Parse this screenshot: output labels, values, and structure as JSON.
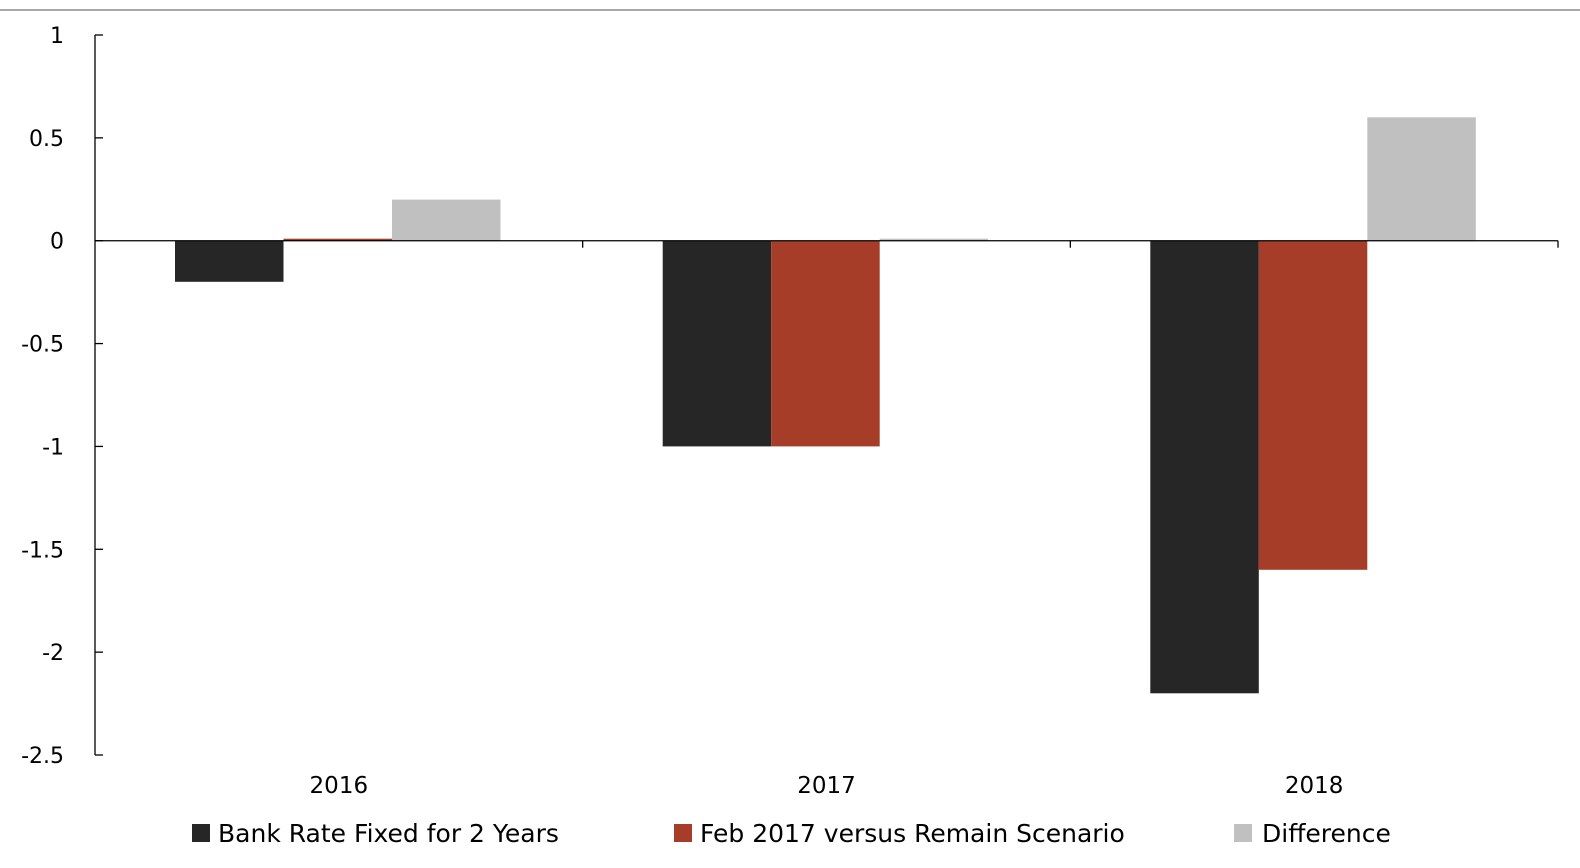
{
  "chart_data": {
    "type": "bar",
    "title": "",
    "xlabel": "",
    "ylabel": "",
    "categories": [
      "2016",
      "2017",
      "2018"
    ],
    "series": [
      {
        "name": "Bank Rate Fixed for 2 Years",
        "color": "#262626",
        "values": [
          -0.2,
          -1.0,
          -2.2
        ]
      },
      {
        "name": "Feb 2017 versus Remain Scenario",
        "color": "#A63D28",
        "values": [
          0.01,
          -1.0,
          -1.6
        ]
      },
      {
        "name": "Difference",
        "color": "#C0C0C0",
        "values": [
          0.2,
          0.01,
          0.6
        ]
      }
    ],
    "ylim": [
      -2.5,
      1
    ],
    "yticks": [
      1,
      0.5,
      0,
      -0.5,
      -1,
      -1.5,
      -2,
      -2.5
    ],
    "ytick_labels": [
      "1",
      "0.5",
      "0",
      "-0.5",
      "-1",
      "-1.5",
      "-2",
      "-2.5"
    ],
    "grid": false,
    "legend_position": "bottom"
  }
}
